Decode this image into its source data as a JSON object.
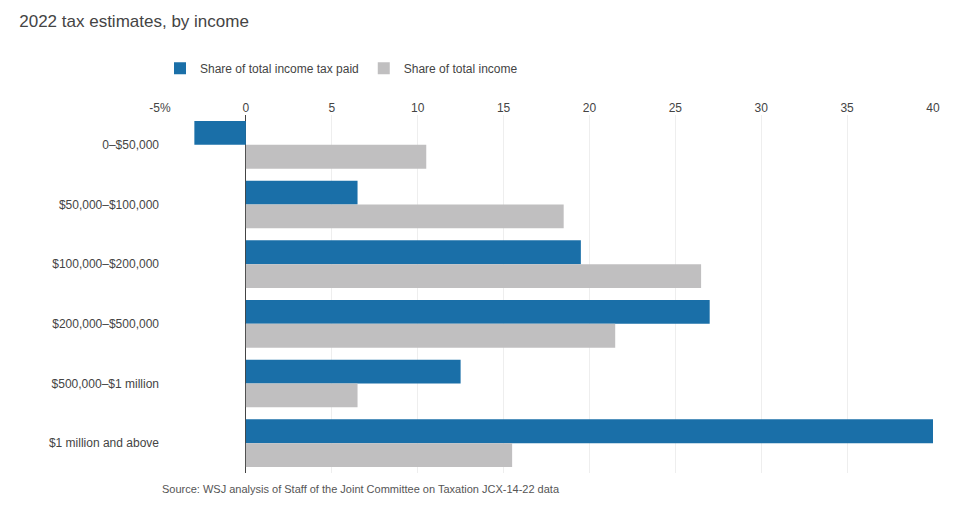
{
  "chart_data": {
    "type": "bar",
    "orientation": "horizontal",
    "title": "2022 tax estimates, by income",
    "categories": [
      "0–$50,000",
      "$50,000–$100,000",
      "$100,000–$200,000",
      "$200,000–$500,000",
      "$500,000–$1 million",
      "$1 million and above"
    ],
    "series": [
      {
        "name": "Share of total income tax paid",
        "color": "#1a6fa8",
        "values": [
          -3.0,
          6.5,
          19.5,
          27.0,
          12.5,
          40.0
        ]
      },
      {
        "name": "Share of total income",
        "color": "#c0bfc0",
        "values": [
          10.5,
          18.5,
          26.5,
          21.5,
          6.5,
          15.5
        ]
      }
    ],
    "xlim": [
      -5,
      40
    ],
    "xticks": [
      {
        "value": -5,
        "label": "-5%"
      },
      0,
      5,
      10,
      15,
      20,
      25,
      30,
      35,
      40
    ],
    "grid": true,
    "legend": "upper left",
    "annotations": [
      "Source: WSJ analysis of Staff of the Joint Committee on Taxation JCX-14-22 data"
    ]
  }
}
